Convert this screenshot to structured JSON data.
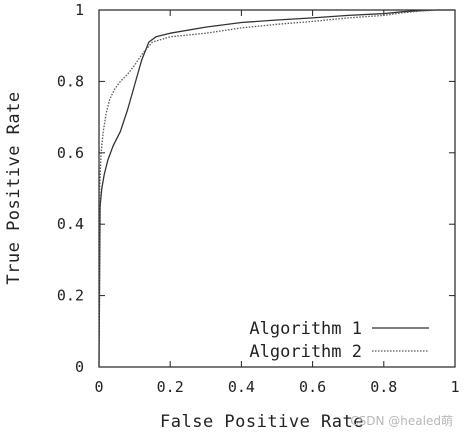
{
  "chart_data": {
    "type": "line",
    "xlabel": "False Positive Rate",
    "ylabel": "True Positive Rate",
    "xlim": [
      0,
      1
    ],
    "ylim": [
      0,
      1
    ],
    "x_ticks": [
      "0",
      "0.2",
      "0.4",
      "0.6",
      "0.8",
      "1"
    ],
    "y_ticks": [
      "0",
      "0.2",
      "0.4",
      "0.6",
      "0.8",
      "1"
    ],
    "grid": false,
    "legend_position": "bottom-right",
    "series": [
      {
        "name": "Algorithm 1",
        "style": "solid",
        "color": "#333333",
        "x": [
          0,
          0.003,
          0.008,
          0.015,
          0.025,
          0.04,
          0.06,
          0.08,
          0.1,
          0.12,
          0.14,
          0.16,
          0.2,
          0.3,
          0.4,
          0.5,
          0.6,
          0.7,
          0.8,
          0.85,
          0.9,
          0.95,
          1.0
        ],
        "y": [
          0,
          0.45,
          0.5,
          0.54,
          0.58,
          0.62,
          0.66,
          0.72,
          0.79,
          0.86,
          0.91,
          0.925,
          0.935,
          0.952,
          0.965,
          0.972,
          0.978,
          0.985,
          0.99,
          0.995,
          0.998,
          1.0,
          1.0
        ]
      },
      {
        "name": "Algorithm 2",
        "style": "dotted",
        "color": "#555555",
        "x": [
          0,
          0.002,
          0.006,
          0.012,
          0.02,
          0.03,
          0.045,
          0.06,
          0.08,
          0.1,
          0.12,
          0.15,
          0.2,
          0.3,
          0.4,
          0.5,
          0.6,
          0.7,
          0.8,
          0.85,
          0.9,
          0.95,
          1.0
        ],
        "y": [
          0,
          0.5,
          0.6,
          0.66,
          0.71,
          0.75,
          0.78,
          0.8,
          0.82,
          0.845,
          0.875,
          0.91,
          0.925,
          0.935,
          0.95,
          0.96,
          0.968,
          0.978,
          0.985,
          0.992,
          0.997,
          1.0,
          1.0
        ]
      }
    ]
  },
  "watermark": "CSDN @healed萌"
}
